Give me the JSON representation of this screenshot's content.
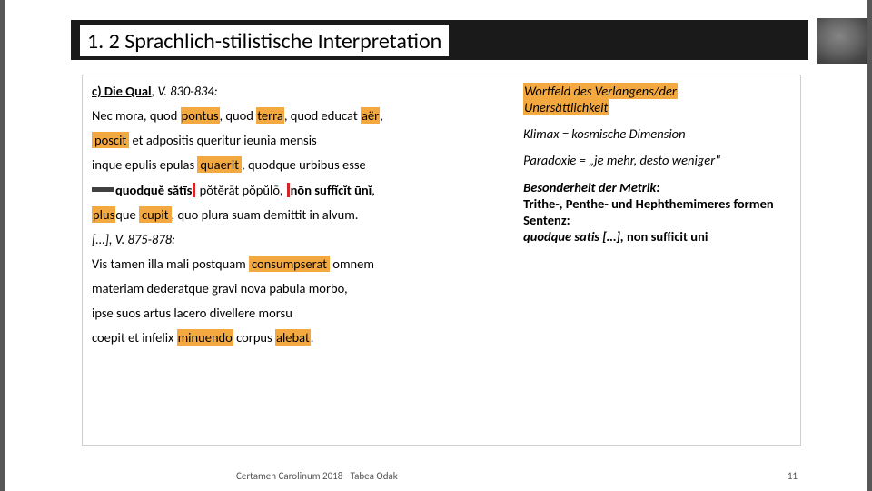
{
  "title": "1. 2 Sprachlich-stilistische Interpretation",
  "left": {
    "sub1_a": "c) Die Qual",
    "sub1_b": ", V. 830-834:",
    "l1_a": "Nec mora, quod ",
    "l1_b": "pontus",
    "l1_c": ", quod ",
    "l1_d": "terra",
    "l1_e": ", quod educat ",
    "l1_f": "aër",
    "l1_g": ",",
    "l2_a": "poscit",
    "l2_b": " et adpositis queritur ieunia mensis",
    "l3_a": "inque epulis epulas ",
    "l3_b": "quaerit",
    "l3_c": ", quodque urbibus esse",
    "l4_a": "quodquĕ sătīs",
    "l4_b": " pŏtĕrāt pŏpŭlō, ",
    "l4_c": "nōn suffĭcĭt ūnĭ",
    "l4_d": ",",
    "l5_a": "plus",
    "l5_b": "que ",
    "l5_c": "cupit",
    "l5_d": ", quo plura suam demittit in alvum.",
    "sub2": "[…], V. 875-878:",
    "l6_a": "Vis tamen illa mali postquam ",
    "l6_b": "consumpserat",
    "l6_c": " omnem",
    "l7": "materiam dederatque gravi nova pabula morbo,",
    "l8": "ipse suos artus lacero divellere morsu",
    "l9_a": "coepit et infelix ",
    "l9_b": "minuendo",
    "l9_c": " corpus ",
    "l9_d": "alebat",
    "l9_e": "."
  },
  "right": {
    "r1_a": "Wortfeld des Verlangens/der",
    "r1_b": "Unersättlichkeit",
    "r2": "Klimax = kosmische Dimension",
    "r3": "Paradoxie = „je mehr, desto weniger\"",
    "r4_a": "Besonderheit der Metrik:",
    "r4_b": "Trithe-, Penthe- und Hephthemimeres formen Sentenz:",
    "r4_c": "quodque satis […], ",
    "r4_d": "non sufficit uni"
  },
  "footer": {
    "credit": "Certamen Carolinum 2018 - Tabea Odak",
    "page": "11"
  },
  "colors": {
    "highlight": "#f4a940",
    "titlebar": "#1a1a1a",
    "red": "#d02828"
  }
}
